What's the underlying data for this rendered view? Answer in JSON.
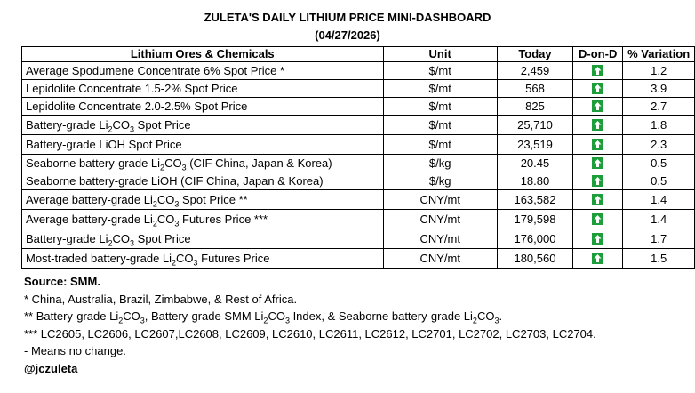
{
  "title": "ZULETA'S DAILY LITHIUM PRICE MINI-DASHBOARD",
  "date": "(04/27/2026)",
  "headers": {
    "name": "Lithium Ores & Chemicals",
    "unit": "Unit",
    "today": "Today",
    "dod": "D-on-D",
    "variation": "% Variation"
  },
  "arrow_color": "#1e9e3b",
  "rows": [
    {
      "pre": "Average Spodumene Concentrate 6% Spot Price *",
      "sub": "",
      "post": "",
      "unit": "$/mt",
      "today": "2,459",
      "dod": "up-arrow-icon",
      "variation": "1.2"
    },
    {
      "pre": "Lepidolite Concentrate 1.5-2% Spot Price",
      "sub": "",
      "post": "",
      "unit": "$/mt",
      "today": "568",
      "dod": "up-arrow-icon",
      "variation": "3.9"
    },
    {
      "pre": "Lepidolite Concentrate 2.0-2.5% Spot Price",
      "sub": "",
      "post": "",
      "unit": "$/mt",
      "today": "825",
      "dod": "up-arrow-icon",
      "variation": "2.7"
    },
    {
      "pre": "Battery-grade Li",
      "sub": "2",
      "post": "CO",
      "sub2": "3",
      "post2": " Spot Price",
      "unit": "$/mt",
      "today": "25,710",
      "dod": "up-arrow-icon",
      "variation": "1.8"
    },
    {
      "pre": "Battery-grade LiOH Spot Price",
      "sub": "",
      "post": "",
      "unit": "$/mt",
      "today": "23,519",
      "dod": "up-arrow-icon",
      "variation": "2.3"
    },
    {
      "pre": "Seaborne battery-grade Li",
      "sub": "2",
      "post": "CO",
      "sub2": "3",
      "post2": " (CIF China, Japan & Korea)",
      "unit": "$/kg",
      "today": "20.45",
      "dod": "up-arrow-icon",
      "variation": "0.5"
    },
    {
      "pre": "Seaborne battery-grade LiOH (CIF China, Japan & Korea)",
      "sub": "",
      "post": "",
      "unit": "$/kg",
      "today": "18.80",
      "dod": "up-arrow-icon",
      "variation": "0.5"
    },
    {
      "pre": "Average battery-grade Li",
      "sub": "2",
      "post": "CO",
      "sub2": "3",
      "post2": " Spot Price **",
      "unit": "CNY/mt",
      "today": "163,582",
      "dod": "up-arrow-icon",
      "variation": "1.4"
    },
    {
      "pre": "Average battery-grade Li",
      "sub": "2",
      "post": "CO",
      "sub2": "3",
      "post2": " Futures Price ***",
      "unit": "CNY/mt",
      "today": "179,598",
      "dod": "up-arrow-icon",
      "variation": "1.4"
    },
    {
      "pre": "Battery-grade Li",
      "sub": "2",
      "post": "CO",
      "sub2": "3",
      "post2": " Spot Price",
      "unit": "CNY/mt",
      "today": "176,000",
      "dod": "up-arrow-icon",
      "variation": "1.7"
    },
    {
      "pre": "Most-traded battery-grade Li",
      "sub": "2",
      "post": "CO",
      "sub2": "3",
      "post2": " Futures Price",
      "unit": "CNY/mt",
      "today": "180,560",
      "dod": "up-arrow-icon",
      "variation": "1.5"
    }
  ],
  "notes": {
    "source": "Source: SMM.",
    "n1": "* China, Australia, Brazil, Zimbabwe, & Rest of Africa.",
    "n2_pre": "** Battery-grade Li",
    "n2_a": "CO",
    "n2_mid": ", Battery-grade SMM Li",
    "n2_b": "CO",
    "n2_mid2": " Index, & Seaborne battery-grade Li",
    "n2_c": "CO",
    "n2_end": ".",
    "sub2": "2",
    "sub3": "3",
    "n3": "*** LC2605, LC2606, LC2607,LC2608, LC2609, LC2610, LC2611, LC2612, LC2701, LC2702, LC2703, LC2704.",
    "n4": "- Means no change.",
    "handle": "@jczuleta"
  }
}
